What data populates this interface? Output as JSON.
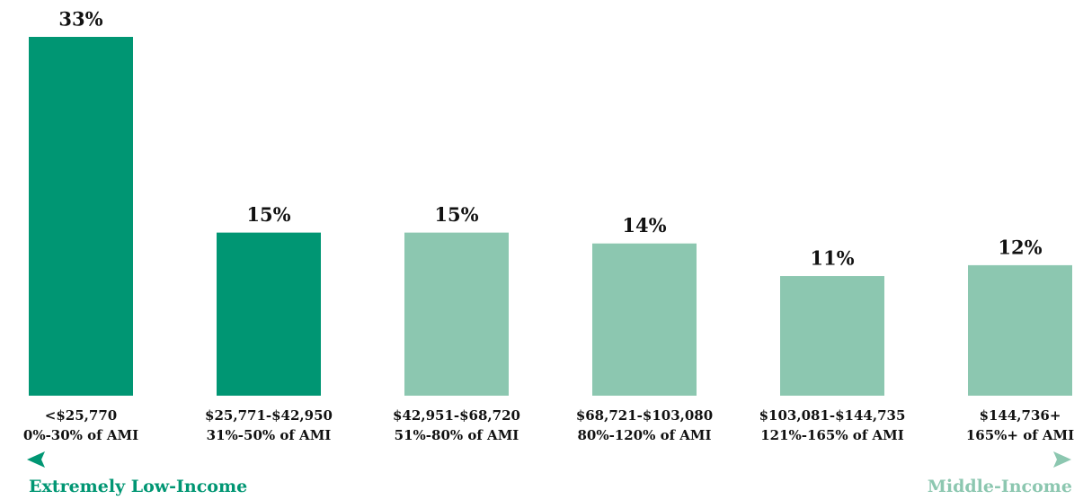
{
  "chart_data": {
    "type": "bar",
    "categories": [
      "<$25,770",
      "$25,771-$42,950",
      "$42,951-$68,720",
      "$68,721-$103,080",
      "$103,081-$144,735",
      "$144,736+"
    ],
    "category_sublabels": [
      "0%-30% of AMI",
      "31%-50% of AMI",
      "51%-80% of AMI",
      "80%-120% of AMI",
      "121%-165% of AMI",
      "165%+ of AMI"
    ],
    "values": [
      33,
      15,
      15,
      14,
      11,
      12
    ],
    "value_labels": [
      "33%",
      "15%",
      "15%",
      "14%",
      "11%",
      "12%"
    ],
    "colors": [
      "#009673",
      "#009673",
      "#8cc7b0",
      "#8cc7b0",
      "#8cc7b0",
      "#8cc7b0"
    ],
    "annotations": [
      {
        "text": "Extremely Low-Income",
        "color": "#009673"
      },
      {
        "text": "Middle-Income",
        "color": "#8cc7b0"
      }
    ]
  }
}
